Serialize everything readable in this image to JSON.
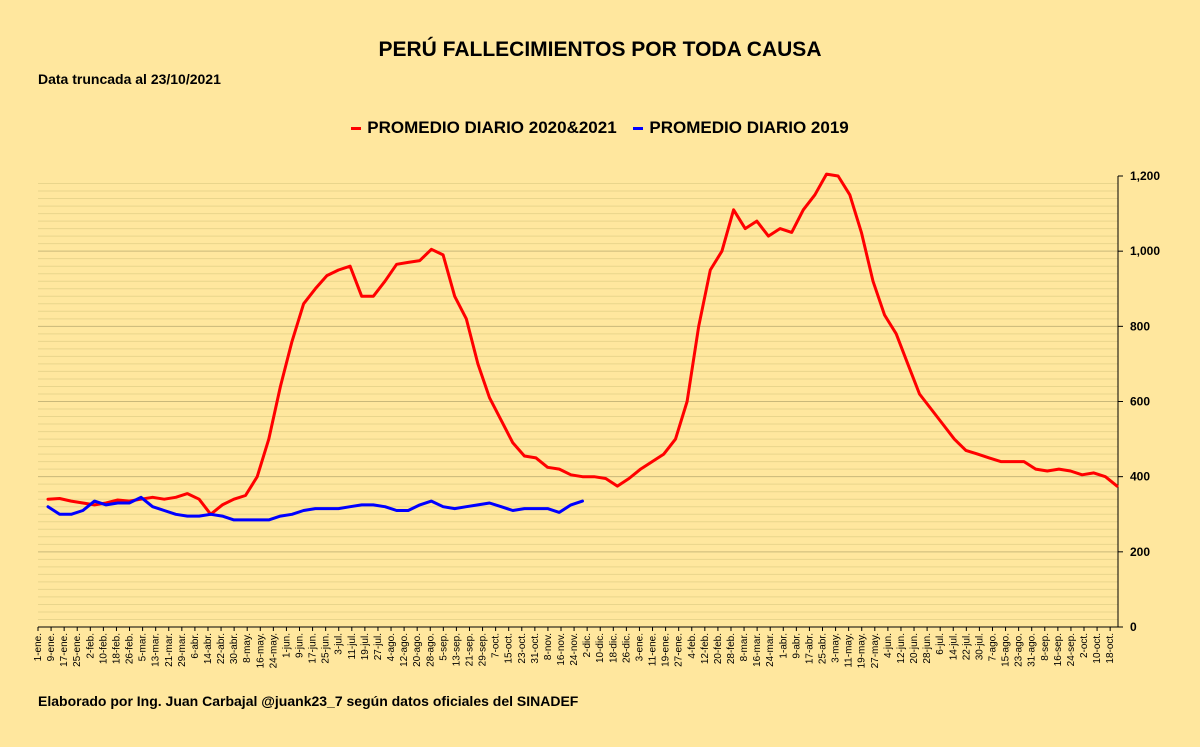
{
  "chart_data": {
    "type": "line",
    "title": "PERÚ FALLECIMIENTOS POR TODA CAUSA",
    "subtitle": "Data truncada al 23/10/2021",
    "footer": "Elaborado por Ing. Juan Carbajal @juank23_7 según datos oficiales del SINADEF",
    "legend_position": "top-center",
    "grid": true,
    "ylim": [
      0,
      1200
    ],
    "y_ticks": [
      "0",
      "200",
      "400",
      "600",
      "800",
      "1,000",
      "1,200"
    ],
    "x_tick_labels": [
      "1-ene.",
      "9-ene.",
      "17-ene.",
      "25-ene.",
      "2-feb.",
      "10-feb.",
      "18-feb.",
      "26-feb.",
      "5-mar.",
      "13-mar.",
      "21-mar.",
      "29-mar.",
      "6-abr.",
      "14-abr.",
      "22-abr.",
      "30-abr.",
      "8-may.",
      "16-may.",
      "24-may.",
      "1-jun.",
      "9-jun.",
      "17-jun.",
      "25-jun.",
      "3-jul.",
      "11-jul.",
      "19-jul.",
      "27-jul.",
      "4-ago.",
      "12-ago.",
      "20-ago.",
      "28-ago.",
      "5-sep.",
      "13-sep.",
      "21-sep.",
      "29-sep.",
      "7-oct.",
      "15-oct.",
      "23-oct.",
      "31-oct.",
      "8-nov.",
      "16-nov.",
      "24-nov.",
      "2-dic.",
      "10-dic.",
      "18-dic.",
      "26-dic.",
      "3-ene.",
      "11-ene.",
      "19-ene.",
      "27-ene.",
      "4-feb.",
      "12-feb.",
      "20-feb.",
      "28-feb.",
      "8-mar.",
      "16-mar.",
      "24-mar.",
      "1-abr.",
      "9-abr.",
      "17-abr.",
      "25-abr.",
      "3-may.",
      "11-may.",
      "19-may.",
      "27-may.",
      "4-jun.",
      "12-jun.",
      "20-jun.",
      "28-jun.",
      "6-jul.",
      "14-jul.",
      "22-jul.",
      "30-jul.",
      "7-ago.",
      "15-ago.",
      "23-ago.",
      "31-ago.",
      "8-sep.",
      "16-sep.",
      "24-sep.",
      "2-oct.",
      "10-oct.",
      "18-oct."
    ],
    "series": [
      {
        "name": "PROMEDIO DIARIO 2020&2021",
        "color": "#FF0000",
        "values": [
          340,
          342,
          335,
          330,
          325,
          330,
          338,
          335,
          340,
          345,
          340,
          345,
          355,
          340,
          300,
          325,
          340,
          350,
          400,
          500,
          640,
          760,
          860,
          900,
          935,
          950,
          960,
          880,
          880,
          920,
          965,
          970,
          975,
          1005,
          990,
          880,
          820,
          700,
          610,
          550,
          490,
          455,
          450,
          425,
          420,
          405,
          400,
          400,
          395,
          375,
          395,
          420,
          440,
          460,
          500,
          600,
          800,
          950,
          1000,
          1110,
          1060,
          1080,
          1040,
          1060,
          1050,
          1110,
          1150,
          1205,
          1200,
          1150,
          1050,
          920,
          830,
          780,
          700,
          620,
          580,
          540,
          500,
          470,
          460,
          450,
          440,
          440,
          440,
          420,
          415,
          420,
          415,
          405,
          410,
          400,
          375
        ]
      },
      {
        "name": "PROMEDIO DIARIO 2019",
        "color": "#0000FF",
        "values": [
          320,
          300,
          300,
          310,
          335,
          325,
          330,
          330,
          345,
          320,
          310,
          300,
          295,
          295,
          300,
          295,
          285,
          285,
          285,
          285,
          295,
          300,
          310,
          315,
          315,
          315,
          320,
          325,
          325,
          320,
          310,
          310,
          325,
          335,
          320,
          315,
          320,
          325,
          330,
          320,
          310,
          315,
          315,
          315,
          305,
          325,
          335
        ]
      }
    ]
  }
}
